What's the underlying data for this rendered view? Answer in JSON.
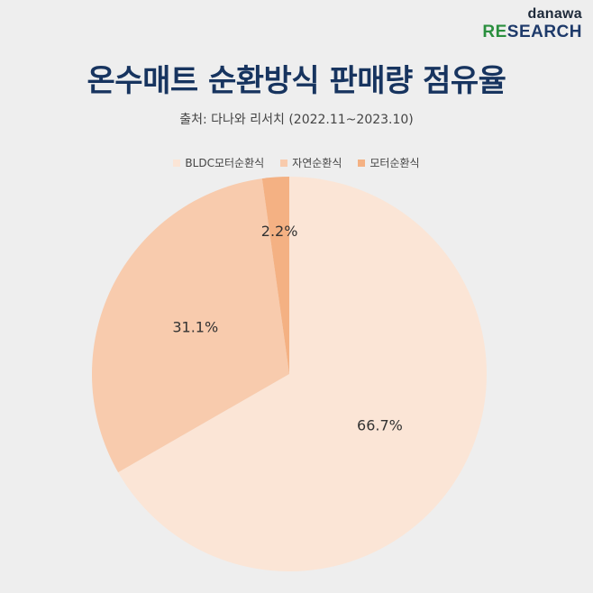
{
  "brand": {
    "top": "danawa",
    "re": "RE",
    "search": "SEARCH"
  },
  "title": "온수매트 순환방식 판매량 점유율",
  "subtitle": "출처: 다나와 리서치 (2022.11~2023.10)",
  "chart_data": {
    "type": "pie",
    "title": "온수매트 순환방식 판매량 점유율",
    "subtitle": "출처: 다나와 리서치 (2022.11~2023.10)",
    "legend_position": "top",
    "slices": [
      {
        "label": "BLDC모터순환식",
        "value": 66.7,
        "display": "66.7%",
        "color": "#fbe5d6"
      },
      {
        "label": "자연순환식",
        "value": 31.1,
        "display": "31.1%",
        "color": "#f8cbad"
      },
      {
        "label": "모터순환식",
        "value": 2.2,
        "display": "2.2%",
        "color": "#f4b183"
      }
    ]
  }
}
